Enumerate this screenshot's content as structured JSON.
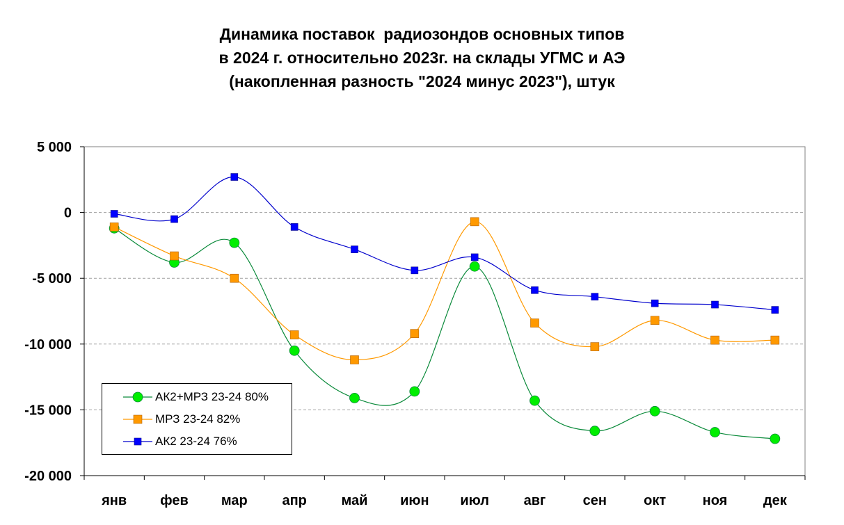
{
  "title": {
    "line1": "Динамика поставок  радиозондов основных типов",
    "line2": "в 2024 г. относительно 2023г. на склады УГМС и АЭ",
    "line3": "(накопленная разность \"2024 минус 2023\"), штук"
  },
  "chart_data": {
    "type": "line",
    "categories": [
      "янв",
      "фев",
      "мар",
      "апр",
      "май",
      "июн",
      "июл",
      "авг",
      "сен",
      "окт",
      "ноя",
      "дек"
    ],
    "ylim": [
      -20000,
      5000
    ],
    "yticks": [
      5000,
      0,
      -5000,
      -10000,
      -15000,
      -20000
    ],
    "ytick_labels": [
      "5 000",
      "0",
      "-5 000",
      "-10 000",
      "-15 000",
      "-20 000"
    ],
    "grid": "horizontal dashed",
    "legend_position": "bottom-left",
    "smooth": true,
    "series": [
      {
        "name": "АК2+МРЗ 23-24 80%",
        "color": "#0a8a3a",
        "marker": "circle",
        "marker_color": "#00ee00",
        "values": [
          -1200,
          -3800,
          -2300,
          -10500,
          -14100,
          -13600,
          -4100,
          -14300,
          -16600,
          -15100,
          -16700,
          -17200
        ]
      },
      {
        "name": "МРЗ 23-24 82%",
        "color": "#ff9900",
        "marker": "square",
        "marker_color": "#ff9900",
        "values": [
          -1100,
          -3300,
          -5000,
          -9300,
          -11200,
          -9200,
          -700,
          -8400,
          -10200,
          -8200,
          -9700,
          -9700
        ]
      },
      {
        "name": "АК2 23-24 76%",
        "color": "#0000cc",
        "marker": "square",
        "marker_color": "#0000ff",
        "values": [
          -100,
          -500,
          2700,
          -1100,
          -2800,
          -4400,
          -3400,
          -5900,
          -6400,
          -6900,
          -7000,
          -7400
        ]
      }
    ]
  }
}
